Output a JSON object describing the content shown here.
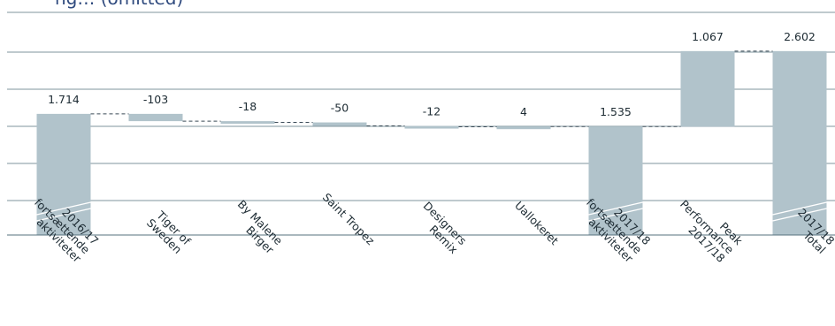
{
  "title_partial": "ng… (omitted)",
  "colors": {
    "bar": "#b1c3cb",
    "gridline": "#55707e",
    "connector": "#3a4a56",
    "text": "#1d2b33",
    "title": "#2f4a7e",
    "hatch": "#ffffff"
  },
  "chart_data": {
    "type": "waterfall",
    "title": "",
    "xlabel": "",
    "ylabel": "",
    "ylim": [
      0,
      3150
    ],
    "grid": true,
    "categories": [
      "2016/17 fortsættende aktiviteter",
      "Tiger of Sweden",
      "By Malene Birger",
      "Saint Tropez",
      "Designers Remix",
      "Uallokeret",
      "2017/18 fortsættende aktiviteter",
      "Peak Performance 2017/18",
      "2017/18 Total"
    ],
    "category_lines": [
      [
        "2016/17",
        "fortsættende",
        "aktiviteter"
      ],
      [
        "Tiger of",
        "Sweden"
      ],
      [
        "By Malene",
        "Birger"
      ],
      [
        "Saint Tropez"
      ],
      [
        "Designers",
        "Remix"
      ],
      [
        "Uallokeret"
      ],
      [
        "2017/18",
        "fortsættende",
        "aktiviteter"
      ],
      [
        "Peak",
        "Performance",
        "2017/18"
      ],
      [
        "2017/18",
        "Total"
      ]
    ],
    "values": [
      1714,
      -103,
      -18,
      -50,
      -12,
      4,
      1535,
      1067,
      2602
    ],
    "value_labels": [
      "1.714",
      "-103",
      "-18",
      "-50",
      "-12",
      "4",
      "1.535",
      "1.067",
      "2.602"
    ],
    "kinds": [
      "total",
      "delta",
      "delta",
      "delta",
      "delta",
      "delta",
      "total",
      "delta",
      "total"
    ],
    "axis_break": [
      true,
      false,
      false,
      false,
      false,
      false,
      true,
      false,
      true
    ]
  }
}
